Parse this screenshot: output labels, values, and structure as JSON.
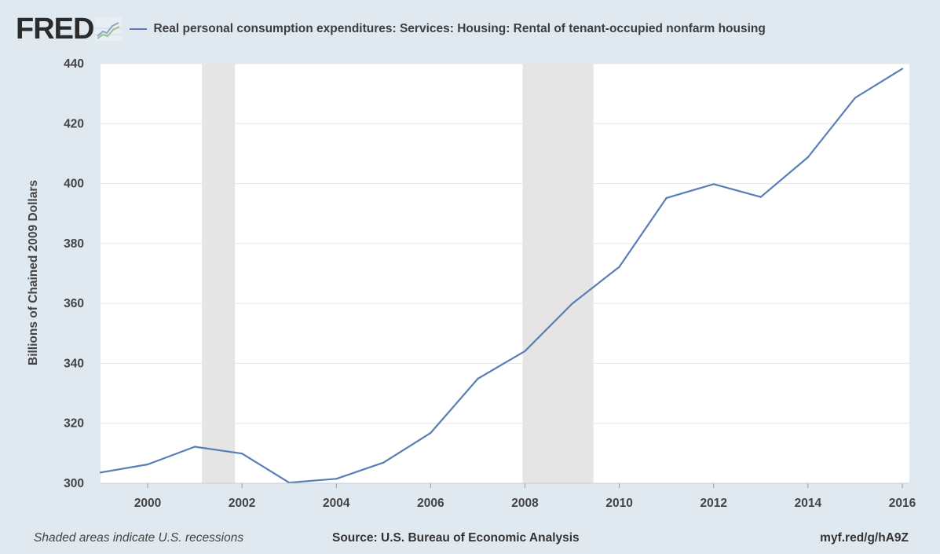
{
  "brand": {
    "logo_text": "FRED",
    "mark_icon": "fred-graph-icon"
  },
  "legend": {
    "series_label": "Real personal consumption expenditures: Services: Housing: Rental of tenant-occupied nonfarm housing",
    "color": "#5b7db5"
  },
  "footer": {
    "note": "Shaded areas indicate U.S. recessions",
    "source": "Source: U.S. Bureau of Economic Analysis",
    "link": "myf.red/g/hA9Z"
  },
  "colors": {
    "background": "#e1e9f0",
    "plot_bg": "#ffffff",
    "line": "#5b7db5",
    "recession": "#e5e5e5",
    "grid": "#e6e6e6"
  },
  "chart_data": {
    "type": "line",
    "title": "",
    "xlabel": "",
    "ylabel": "Billions of Chained 2009 Dollars",
    "xlim": [
      1999,
      2016.15
    ],
    "ylim": [
      300,
      440
    ],
    "xticks": [
      2000,
      2002,
      2004,
      2006,
      2008,
      2010,
      2012,
      2014,
      2016
    ],
    "xtick_labels": [
      "2000",
      "2002",
      "2004",
      "2006",
      "2008",
      "2010",
      "2012",
      "2014",
      "2016"
    ],
    "yticks": [
      300,
      320,
      340,
      360,
      380,
      400,
      420,
      440
    ],
    "ytick_labels": [
      "300",
      "320",
      "340",
      "360",
      "380",
      "400",
      "420",
      "440"
    ],
    "grid": true,
    "recessions": [
      [
        2001.15,
        2001.85
      ],
      [
        2007.95,
        2009.45
      ]
    ],
    "series": [
      {
        "name": "Real personal consumption expenditures: Services: Housing: Rental of tenant-occupied nonfarm housing",
        "x": [
          1999,
          2000,
          2001,
          2002,
          2003,
          2004,
          2005,
          2006,
          2007,
          2008,
          2009,
          2010,
          2011,
          2012,
          2013,
          2014,
          2015,
          2016
        ],
        "y": [
          303.6,
          306.3,
          312.2,
          309.9,
          300.2,
          301.5,
          306.9,
          316.8,
          334.9,
          344.1,
          359.9,
          372.2,
          395.2,
          399.8,
          395.5,
          408.8,
          428.6,
          438.3
        ]
      }
    ]
  }
}
